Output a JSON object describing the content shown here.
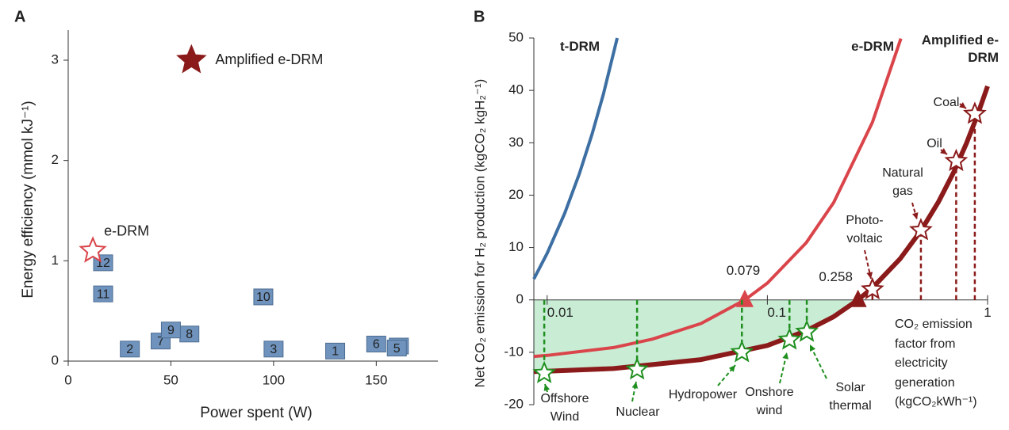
{
  "panel_labels": [
    "A",
    "B"
  ],
  "chart_data": [
    {
      "type": "scatter",
      "xlabel": "Power spent (W)",
      "ylabel": "Energy efficiency (mmol kJ⁻¹)",
      "xlim": [
        0,
        180
      ],
      "ylim": [
        0,
        3.3
      ],
      "xticks": [
        0,
        50,
        100,
        150
      ],
      "yticks": [
        0,
        1,
        2,
        3
      ],
      "series": [
        {
          "color": "#6f93bd",
          "marker": "square",
          "labels": [
            "1",
            "2",
            "3",
            "4",
            "5",
            "6",
            "7",
            "8",
            "9",
            "10",
            "11",
            "12"
          ],
          "x": [
            130,
            30,
            100,
            161,
            160,
            150,
            45,
            59,
            50,
            95,
            17,
            17
          ],
          "values": [
            0.1,
            0.12,
            0.12,
            0.15,
            0.13,
            0.17,
            0.2,
            0.27,
            0.31,
            0.64,
            0.67,
            0.98
          ]
        },
        {
          "name": "e-DRM",
          "color": "#d9454a",
          "marker": "star-open",
          "x": [
            12
          ],
          "values": [
            1.1
          ]
        },
        {
          "name": "Amplified e-DRM",
          "color": "#8b1a1a",
          "marker": "star",
          "x": [
            60
          ],
          "values": [
            3.0
          ]
        }
      ]
    },
    {
      "type": "line",
      "xlabel": "CO₂ emission factor from electricity generation (kgCO₂kWh⁻¹)",
      "ylabel": "Net CO₂ emission for H₂ production (kgCO₂ kgH₂⁻¹)",
      "xscale": "log",
      "xlim": [
        0.0087,
        1
      ],
      "ylim": [
        -20,
        50
      ],
      "xticks": [
        0.01,
        0.1,
        1
      ],
      "yticks": [
        -20,
        -10,
        0,
        10,
        20,
        30,
        40,
        50
      ],
      "fill_color": "#c9ecd5",
      "series": [
        {
          "name": "t-DRM",
          "color": "#3d6fa3",
          "x": [
            0.0087,
            0.01,
            0.012,
            0.014,
            0.016,
            0.018,
            0.0208
          ],
          "values": [
            4.0,
            8.9,
            16.5,
            24.1,
            31.7,
            39.3,
            50.0
          ]
        },
        {
          "name": "e-DRM",
          "color": "#d9454a",
          "x": [
            0.0087,
            0.01,
            0.02,
            0.03,
            0.05,
            0.079,
            0.1,
            0.15,
            0.2,
            0.3,
            0.404
          ],
          "values": [
            -10.8,
            -10.6,
            -9.1,
            -7.5,
            -4.5,
            0,
            3.2,
            10.9,
            18.6,
            33.9,
            49.9
          ]
        },
        {
          "name": "Amplified e-DRM",
          "color": "#8b1a1a",
          "x": [
            0.0087,
            0.01,
            0.02,
            0.05,
            0.1,
            0.15,
            0.2,
            0.258,
            0.3,
            0.4,
            0.5,
            0.6,
            0.7,
            0.8,
            0.9,
            1
          ],
          "values": [
            -13.7,
            -13.6,
            -13.1,
            -11.4,
            -8.7,
            -5.9,
            -3.2,
            0,
            2.3,
            7.8,
            13.3,
            18.8,
            24.3,
            29.8,
            35.3,
            40.8
          ]
        }
      ],
      "crossings": [
        {
          "x": 0.079,
          "y": 0,
          "color": "#d9454a"
        },
        {
          "x": 0.258,
          "y": 0,
          "color": "#8b1a1a"
        }
      ],
      "sources": [
        {
          "label": "Offshore Wind",
          "x": 0.0097,
          "y": -14,
          "color": "#1f8f1f"
        },
        {
          "label": "Nuclear",
          "x": 0.0256,
          "y": -13.3,
          "color": "#1f8f1f"
        },
        {
          "label": "Hydropower",
          "x": 0.0766,
          "y": -10,
          "color": "#1f8f1f"
        },
        {
          "label": "Onshore wind",
          "x": 0.126,
          "y": -7.6,
          "color": "#1f8f1f"
        },
        {
          "label": "Solar thermal",
          "x": 0.151,
          "y": -6.1,
          "color": "#1f8f1f"
        },
        {
          "label": "Photo-voltaic",
          "x": 0.3,
          "y": 2,
          "color": "#8b1a1a"
        },
        {
          "label": "Natural gas",
          "x": 0.498,
          "y": 13.3,
          "color": "#8b1a1a"
        },
        {
          "label": "Oil",
          "x": 0.72,
          "y": 26.5,
          "color": "#8b1a1a"
        },
        {
          "label": "Coal",
          "x": 0.875,
          "y": 35.5,
          "color": "#8b1a1a"
        }
      ]
    }
  ]
}
